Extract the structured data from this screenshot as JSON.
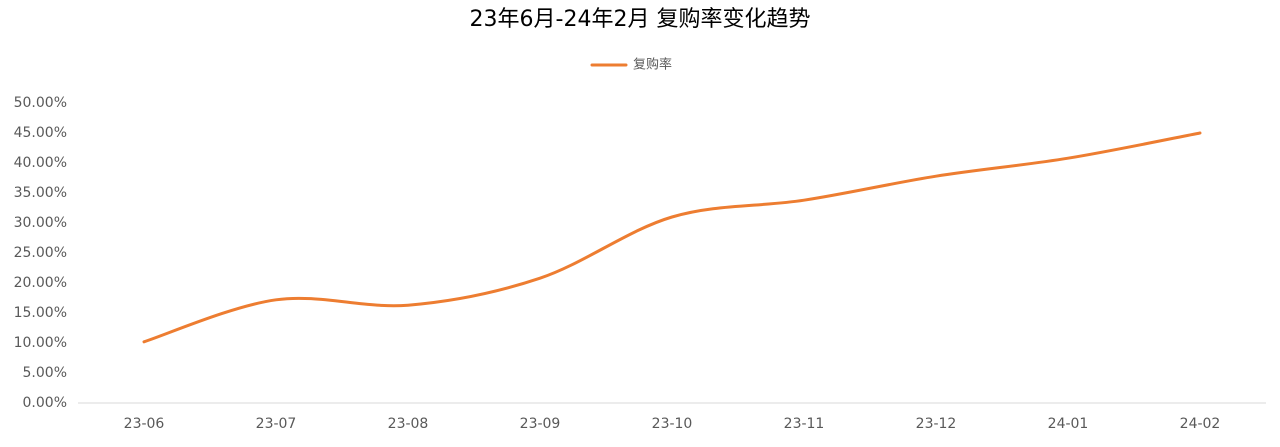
{
  "chart_data": {
    "type": "line",
    "title": "23年6月-24年2月 复购率变化趋势",
    "categories": [
      "23-06",
      "23-07",
      "23-08",
      "23-09",
      "23-10",
      "23-11",
      "23-12",
      "24-01",
      "24-02"
    ],
    "series": [
      {
        "name": "复购率",
        "color": "#ed7d31",
        "values": [
          10.2,
          17.2,
          16.3,
          20.8,
          31.0,
          33.8,
          37.8,
          40.8,
          45.0
        ]
      }
    ],
    "ylim": [
      0,
      50
    ],
    "yticks": [
      {
        "value": 0,
        "label": "0.00%"
      },
      {
        "value": 5,
        "label": "5.00%"
      },
      {
        "value": 10,
        "label": "10.00%"
      },
      {
        "value": 15,
        "label": "15.00%"
      },
      {
        "value": 20,
        "label": "20.00%"
      },
      {
        "value": 25,
        "label": "25.00%"
      },
      {
        "value": 30,
        "label": "30.00%"
      },
      {
        "value": 35,
        "label": "35.00%"
      },
      {
        "value": 40,
        "label": "40.00%"
      },
      {
        "value": 45,
        "label": "45.00%"
      },
      {
        "value": 50,
        "label": "50.00%"
      }
    ],
    "grid": false,
    "smooth": true,
    "legend": "top"
  }
}
